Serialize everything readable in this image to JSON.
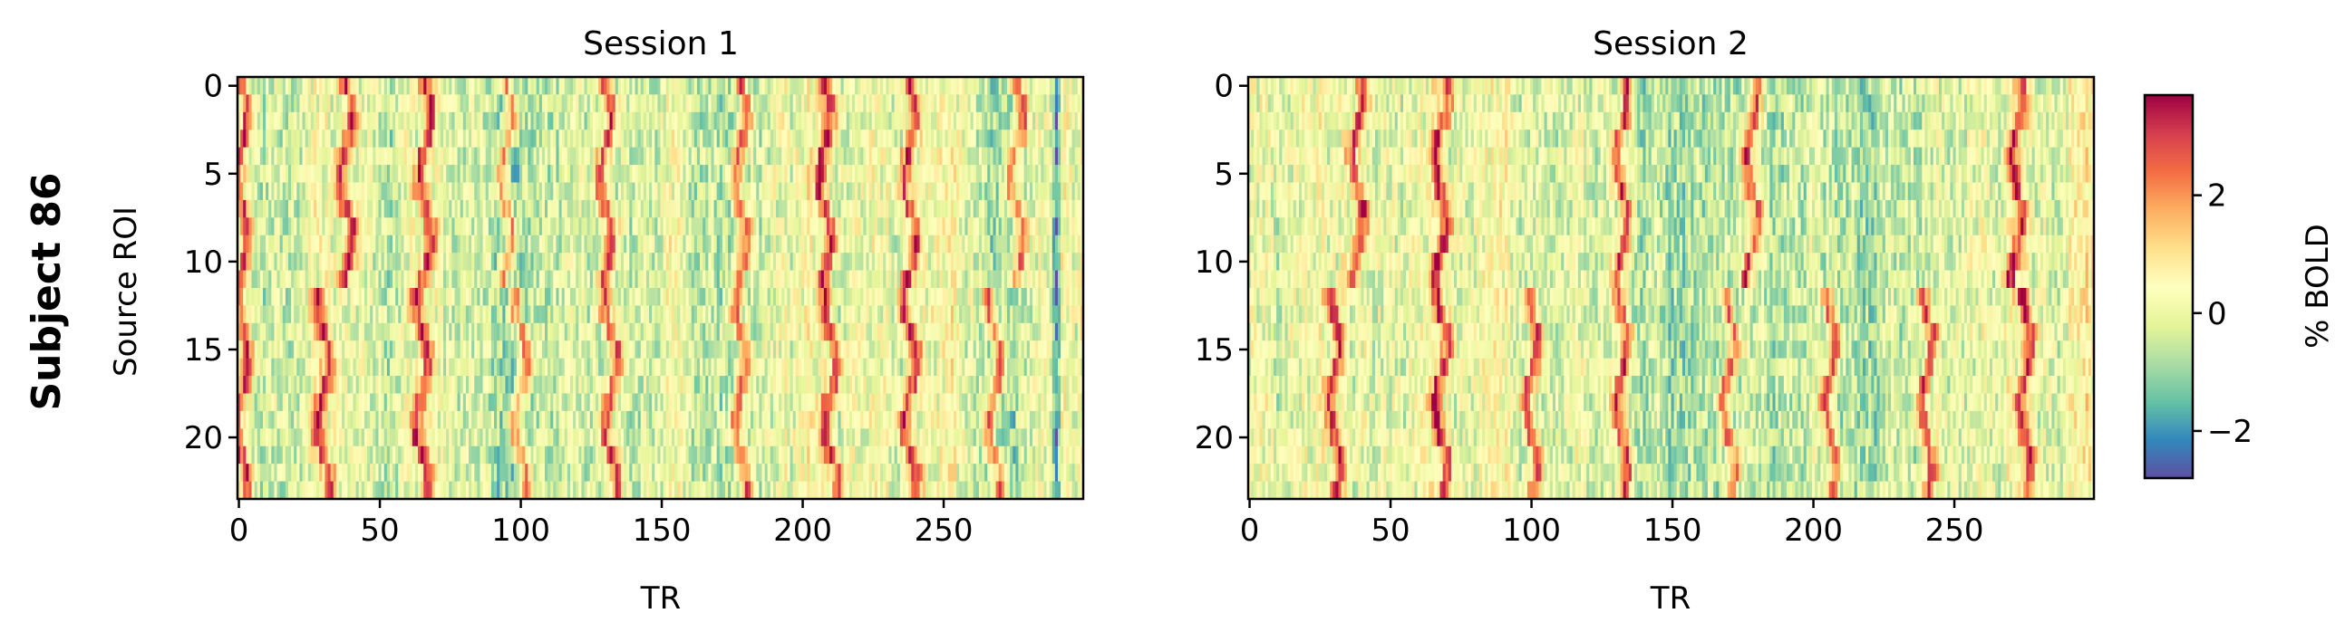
{
  "figure": {
    "row_label": "Subject 86"
  },
  "chart_data": [
    {
      "type": "heatmap",
      "title": "Session 1",
      "xlabel": "TR",
      "ylabel": "Source ROI",
      "xlim": [
        0,
        299
      ],
      "ylim": [
        23,
        0
      ],
      "x_ticks": [
        "0",
        "50",
        "100",
        "150",
        "200",
        "250"
      ],
      "y_ticks": [
        "0",
        "5",
        "10",
        "15",
        "20"
      ],
      "n_rois": 24,
      "n_trs": 300,
      "peak_trs_top_half": [
        1,
        38,
        66,
        95,
        130,
        178,
        208,
        238,
        276
      ],
      "peak_trs_bottom_half": [
        1,
        30,
        65,
        100,
        132,
        178,
        210,
        238,
        268
      ],
      "trough_trs": [
        290
      ]
    },
    {
      "type": "heatmap",
      "title": "Session 2",
      "xlabel": "TR",
      "ylabel": "",
      "xlim": [
        0,
        299
      ],
      "ylim": [
        23,
        0
      ],
      "x_ticks": [
        "0",
        "50",
        "100",
        "150",
        "200",
        "250"
      ],
      "y_ticks": [
        "0",
        "5",
        "10",
        "15",
        "20"
      ],
      "n_rois": 24,
      "n_trs": 300,
      "peak_trs_top_half": [
        38,
        68,
        132,
        178,
        272
      ],
      "peak_trs_bottom_half": [
        30,
        68,
        100,
        132,
        170,
        206,
        240,
        275
      ],
      "trough_trs": []
    }
  ],
  "colorbar": {
    "label": "% BOLD",
    "colormap": "Spectral_r",
    "min": -2.8,
    "max": 3.7,
    "ticks": [
      "−2",
      "0",
      "2"
    ]
  }
}
